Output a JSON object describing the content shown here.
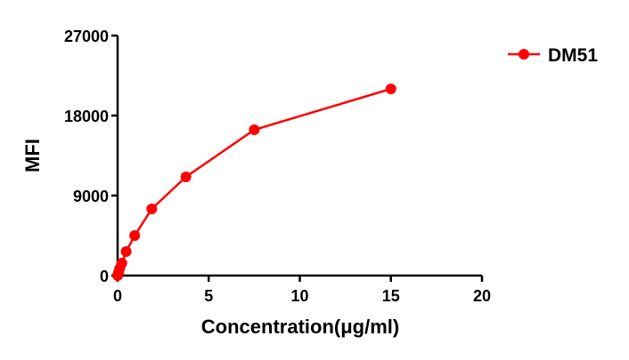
{
  "chart_data": {
    "type": "line",
    "title": "",
    "xlabel": "Concentration(μg/ml)",
    "ylabel": "MFI",
    "xlim": [
      0,
      20
    ],
    "ylim": [
      0,
      27000
    ],
    "xticks": [
      "0",
      "5",
      "10",
      "15",
      "20"
    ],
    "yticks": [
      "0",
      "9000",
      "18000",
      "27000"
    ],
    "grid": false,
    "legend_position": "top-right",
    "series": [
      {
        "name": "DM51",
        "color": "#ff0000",
        "marker": "circle",
        "x": [
          0,
          0.029,
          0.059,
          0.117,
          0.234,
          0.469,
          0.9375,
          1.875,
          3.75,
          7.5,
          15
        ],
        "y": [
          0,
          200,
          400,
          800,
          1400,
          2700,
          4500,
          7500,
          11100,
          16400,
          21000
        ]
      }
    ]
  }
}
